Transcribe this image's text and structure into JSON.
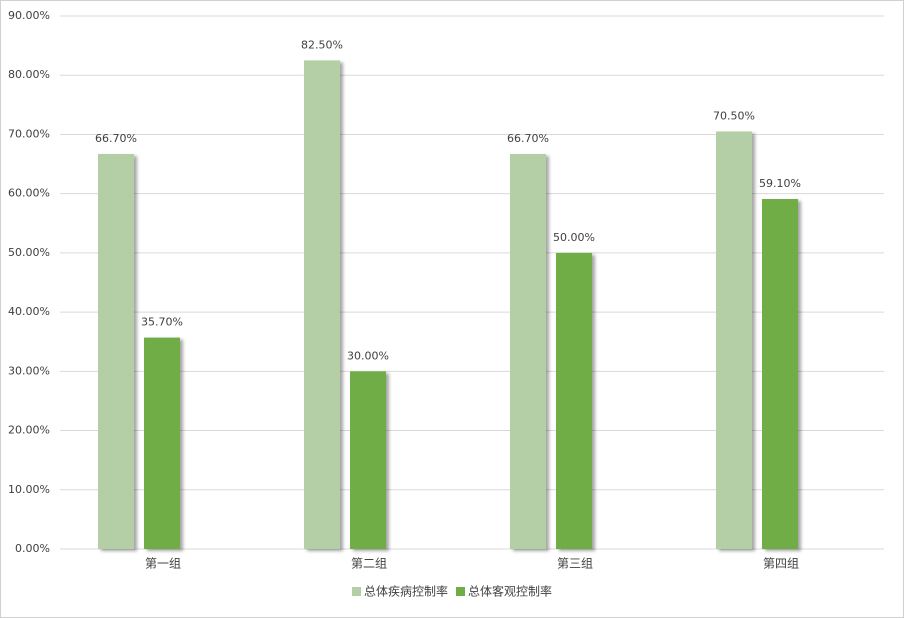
{
  "chart_data": {
    "type": "bar",
    "categories": [
      "第一组",
      "第二组",
      "第三组",
      "第四组"
    ],
    "series": [
      {
        "name": "总体疾病控制率",
        "color": "#b4cfa6",
        "values": [
          66.7,
          82.5,
          66.7,
          70.5
        ],
        "value_labels": [
          "66.70%",
          "82.50%",
          "66.70%",
          "70.50%"
        ]
      },
      {
        "name": "总体客观控制率",
        "color": "#70ad47",
        "values": [
          35.7,
          30.0,
          50.0,
          59.1
        ],
        "value_labels": [
          "35.70%",
          "30.00%",
          "50.00%",
          "59.10%"
        ]
      }
    ],
    "ylim": [
      0,
      90
    ],
    "yticks": [
      {
        "value": 0,
        "label": "0.00%"
      },
      {
        "value": 10,
        "label": "10.00%"
      },
      {
        "value": 20,
        "label": "20.00%"
      },
      {
        "value": 30,
        "label": "30.00%"
      },
      {
        "value": 40,
        "label": "40.00%"
      },
      {
        "value": 50,
        "label": "50.00%"
      },
      {
        "value": 60,
        "label": "60.00%"
      },
      {
        "value": 70,
        "label": "70.00%"
      },
      {
        "value": 80,
        "label": "80.00%"
      },
      {
        "value": 90,
        "label": "90.00%"
      }
    ],
    "grid": true,
    "legend": "bottom"
  }
}
